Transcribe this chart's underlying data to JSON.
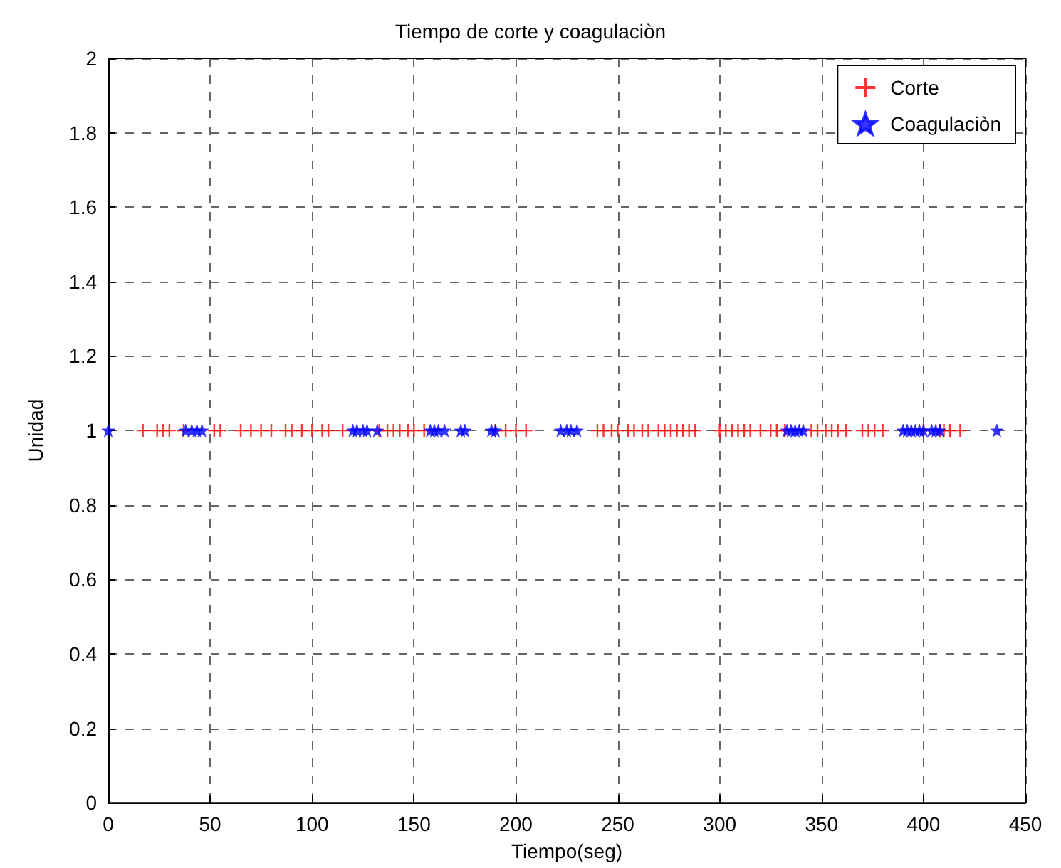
{
  "chart_data": {
    "type": "scatter",
    "title": "Tiempo de corte y coagulaciòn",
    "xlabel": "Tiempo(seg)",
    "ylabel": "Unidad",
    "xlim": [
      0,
      450
    ],
    "xticks": [
      0,
      50,
      100,
      150,
      200,
      250,
      300,
      350,
      400,
      450
    ],
    "ylim": [
      0,
      2
    ],
    "yticks": [
      0,
      0.2,
      0.4,
      0.6,
      0.8,
      1,
      1.2,
      1.4,
      1.6,
      1.8,
      2
    ],
    "grid": true,
    "legend": "top right",
    "series": [
      {
        "name": "Corte",
        "color": "#ff0000",
        "marker": "cross",
        "x": [
          17,
          24,
          27,
          30,
          37,
          52,
          55,
          65,
          70,
          75,
          80,
          87,
          90,
          95,
          100,
          105,
          108,
          115,
          133,
          137,
          140,
          143,
          147,
          150,
          155,
          190,
          195,
          200,
          205,
          240,
          243,
          247,
          250,
          255,
          258,
          262,
          265,
          270,
          273,
          276,
          279,
          282,
          285,
          288,
          300,
          303,
          306,
          309,
          312,
          315,
          320,
          325,
          328,
          332,
          345,
          348,
          352,
          355,
          358,
          362,
          370,
          373,
          376,
          380,
          400,
          408,
          410,
          413,
          418
        ],
        "values": [
          1,
          1,
          1,
          1,
          1,
          1,
          1,
          1,
          1,
          1,
          1,
          1,
          1,
          1,
          1,
          1,
          1,
          1,
          1,
          1,
          1,
          1,
          1,
          1,
          1,
          1,
          1,
          1,
          1,
          1,
          1,
          1,
          1,
          1,
          1,
          1,
          1,
          1,
          1,
          1,
          1,
          1,
          1,
          1,
          1,
          1,
          1,
          1,
          1,
          1,
          1,
          1,
          1,
          1,
          1,
          1,
          1,
          1,
          1,
          1,
          1,
          1,
          1,
          1,
          1,
          1,
          1,
          1,
          1
        ]
      },
      {
        "name": "Coagulaciòn",
        "color": "#0000ff",
        "marker": "star",
        "x": [
          0,
          38,
          41,
          43.5,
          46,
          120,
          122,
          125,
          127,
          132,
          158,
          160,
          162,
          165,
          173,
          175,
          188,
          190,
          222,
          225,
          227,
          230,
          333,
          335,
          337,
          339,
          341,
          390,
          392,
          394,
          396,
          398,
          400,
          404,
          406,
          408,
          436
        ],
        "values": [
          1,
          1,
          1,
          1,
          1,
          1,
          1,
          1,
          1,
          1,
          1,
          1,
          1,
          1,
          1,
          1,
          1,
          1,
          1,
          1,
          1,
          1,
          1,
          1,
          1,
          1,
          1,
          1,
          1,
          1,
          1,
          1,
          1,
          1,
          1,
          1,
          1
        ]
      }
    ]
  }
}
